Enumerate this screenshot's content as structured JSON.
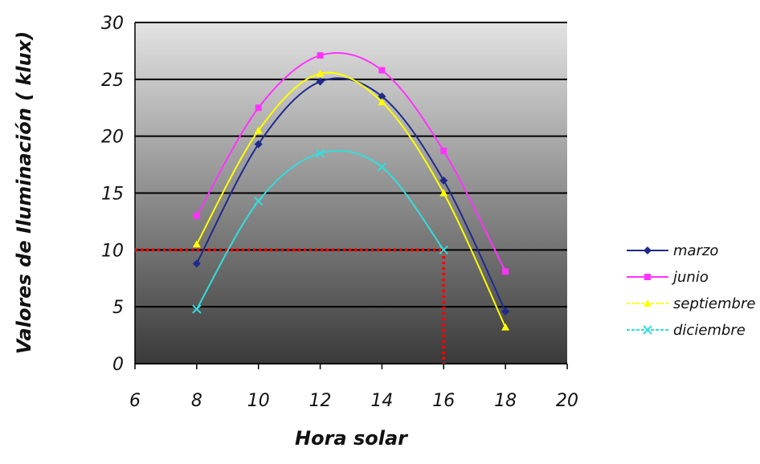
{
  "chart_data": {
    "type": "line",
    "xlabel": "Hora solar",
    "ylabel": "Valores de Iluminación ( klux)",
    "xlim": [
      6,
      20
    ],
    "ylim": [
      0,
      30
    ],
    "xticks": [
      6,
      8,
      10,
      12,
      14,
      16,
      18,
      20
    ],
    "yticks": [
      0,
      5,
      10,
      15,
      20,
      25,
      30
    ],
    "grid": "horizontal",
    "legend_position": "right",
    "plot_background": "gradient light gray (top) to dark gray (bottom)",
    "series": [
      {
        "name": "marzo",
        "color": "#1f2a8a",
        "marker": "diamond",
        "x": [
          8,
          10,
          12,
          14,
          16,
          18
        ],
        "y": [
          8.8,
          19.3,
          24.8,
          23.5,
          16.1,
          4.6
        ]
      },
      {
        "name": "junio",
        "color": "#ff33ff",
        "marker": "square",
        "x": [
          8,
          10,
          12,
          14,
          16,
          18
        ],
        "y": [
          13.0,
          22.5,
          27.1,
          25.8,
          18.7,
          8.1
        ]
      },
      {
        "name": "septiembre",
        "color": "#ffff00",
        "marker": "triangle",
        "x": [
          8,
          10,
          12,
          14,
          16,
          18
        ],
        "y": [
          10.5,
          20.5,
          25.5,
          23.0,
          15.0,
          3.2
        ]
      },
      {
        "name": "diciembre",
        "color": "#33dddd",
        "marker": "cross",
        "x": [
          8,
          10,
          12,
          14,
          16
        ],
        "y": [
          4.8,
          14.3,
          18.5,
          17.3,
          10.0
        ]
      }
    ],
    "annotations": [
      {
        "type": "reference_line",
        "color": "#ff0000",
        "style": "dotted",
        "points": [
          [
            6,
            10
          ],
          [
            16,
            10
          ],
          [
            16,
            0
          ]
        ]
      }
    ]
  }
}
